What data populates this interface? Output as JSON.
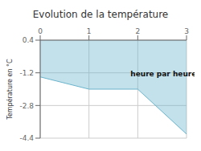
{
  "chart_data": {
    "type": "area",
    "title": "Evolution de la température",
    "ylabel": "Température en °C",
    "x": [
      0,
      1,
      2,
      3
    ],
    "values": [
      -1.4,
      -2.0,
      -2.0,
      -4.2
    ],
    "color": "#6ab4cc",
    "xlim": [
      0,
      3
    ],
    "ylim": [
      -4.4,
      0.4
    ],
    "xticks": [
      0,
      1,
      2,
      3
    ],
    "yticks": [
      0.4,
      -1.2,
      -2.8,
      -4.4
    ],
    "grid": true,
    "annotations": [
      {
        "text": "heure par heure",
        "x": 1.85,
        "y": -1.25
      }
    ]
  }
}
